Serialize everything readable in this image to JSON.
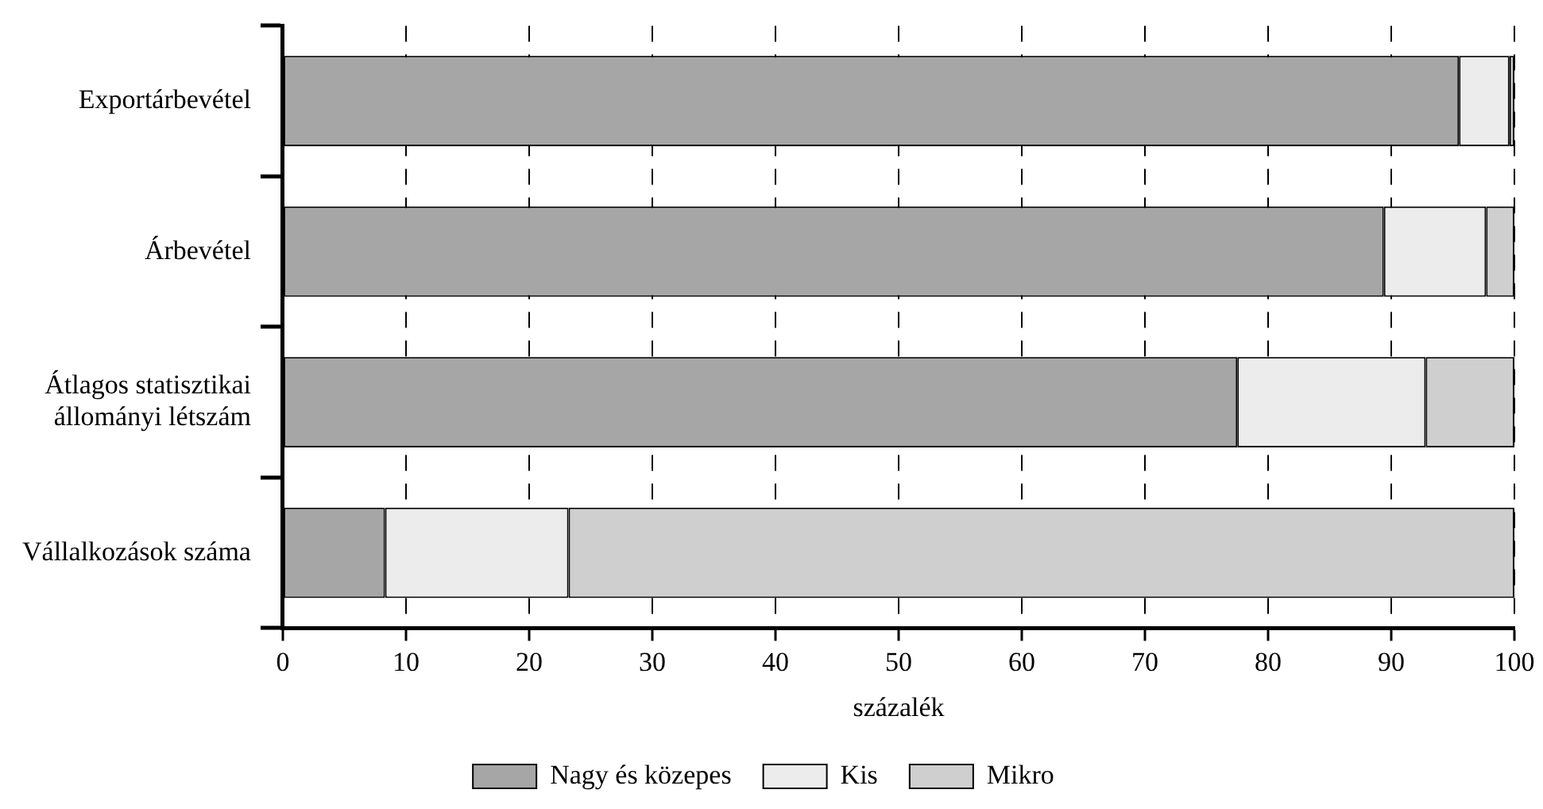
{
  "chart_data": {
    "type": "bar",
    "orientation": "horizontal",
    "stacked": true,
    "categories": [
      "Exportárbevétel",
      "Árbevétel",
      "Átlagos statisztikai állományi létszám",
      "Vállalkozások száma"
    ],
    "series": [
      {
        "name": "Nagy és közepes",
        "color": "#a6a6a6",
        "values": [
          95.5,
          89.4,
          77.5,
          8.3
        ]
      },
      {
        "name": "Kis",
        "color": "#ececec",
        "values": [
          4.1,
          8.3,
          15.3,
          14.9
        ]
      },
      {
        "name": "Mikro",
        "color": "#cfcfcf",
        "values": [
          0.4,
          2.3,
          7.2,
          76.8
        ]
      }
    ],
    "xlabel": "százalék",
    "xlim": [
      0,
      100
    ],
    "xticks": [
      0,
      10,
      20,
      30,
      40,
      50,
      60,
      70,
      80,
      90,
      100
    ],
    "grid": "x",
    "legend": "bottom"
  }
}
